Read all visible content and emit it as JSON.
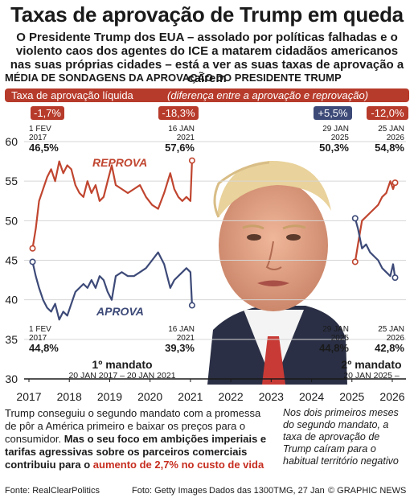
{
  "header": {
    "title": "Taxas de aprovação de Trump em queda",
    "subtitle": "O Presidente Trump dos EUA – assolado por políticas falhadas e o violento caos dos agentes do ICE a matarem cidadãos americanos nas suas próprias cidades – está a ver as suas taxas de aprovação a caírem",
    "section": "MÉDIA DE SONDAGENS DA APROVAÇÃO DO PRESIDENTE TRUMP",
    "net_label_bold": "Taxa de aprovação líquida",
    "net_label_italic": "(diferença entre a aprovação e reprovação)"
  },
  "net_badges": [
    {
      "value": "-1,7%",
      "color": "#b73b2b"
    },
    {
      "value": "-18,3%",
      "color": "#b73b2b"
    },
    {
      "value": "+5,5%",
      "color": "#3d4a78"
    },
    {
      "value": "-12,0%",
      "color": "#b73b2b"
    }
  ],
  "chart_data": {
    "type": "line",
    "x_labels": [
      "2017",
      "2018",
      "2019",
      "2020",
      "2021",
      "2022",
      "2023",
      "2024",
      "2025",
      "2026"
    ],
    "ylim": [
      30,
      60
    ],
    "y_ticks": [
      "60",
      "55",
      "50",
      "45",
      "40",
      "35",
      "30"
    ],
    "series": [
      {
        "name": "REPROVA",
        "color": "#c0452f",
        "term1": {
          "x": [
            2017.09,
            2017.17,
            2017.25,
            2017.35,
            2017.45,
            2017.55,
            2017.65,
            2017.75,
            2017.85,
            2017.95,
            2018.05,
            2018.15,
            2018.25,
            2018.35,
            2018.45,
            2018.55,
            2018.65,
            2018.75,
            2018.85,
            2018.95,
            2019.05,
            2019.15,
            2019.3,
            2019.45,
            2019.6,
            2019.75,
            2019.9,
            2020.05,
            2020.2,
            2020.35,
            2020.5,
            2020.6,
            2020.7,
            2020.8,
            2020.9,
            2021.0,
            2021.04
          ],
          "y": [
            46.5,
            49,
            52.5,
            54,
            55.5,
            56.5,
            55,
            57.5,
            56,
            57,
            56.5,
            54.5,
            53.5,
            53,
            55,
            53.5,
            54.5,
            52.5,
            53,
            55,
            57,
            54.5,
            54,
            53.5,
            54,
            54.5,
            53,
            52,
            51.5,
            53.5,
            56,
            54,
            53,
            52.5,
            53,
            52.5,
            57.6
          ]
        },
        "term2": {
          "x": [
            2025.08,
            2025.15,
            2025.25,
            2025.35,
            2025.45,
            2025.55,
            2025.65,
            2025.75,
            2025.85,
            2025.95,
            2026.02,
            2026.07
          ],
          "y": [
            44.8,
            47,
            50,
            50.5,
            51,
            51.5,
            52,
            53,
            53.5,
            55,
            54,
            54.8
          ]
        }
      },
      {
        "name": "APROVA",
        "color": "#3d4a78",
        "term1": {
          "x": [
            2017.09,
            2017.17,
            2017.25,
            2017.35,
            2017.45,
            2017.55,
            2017.65,
            2017.75,
            2017.85,
            2017.95,
            2018.05,
            2018.15,
            2018.25,
            2018.35,
            2018.45,
            2018.55,
            2018.65,
            2018.75,
            2018.85,
            2018.95,
            2019.05,
            2019.15,
            2019.3,
            2019.45,
            2019.6,
            2019.75,
            2019.9,
            2020.05,
            2020.2,
            2020.35,
            2020.5,
            2020.6,
            2020.7,
            2020.8,
            2020.9,
            2021.0,
            2021.04
          ],
          "y": [
            44.8,
            43,
            41.5,
            40,
            39,
            38.5,
            39.5,
            37.5,
            38.5,
            38,
            39.5,
            41,
            41.5,
            42,
            41.5,
            42.5,
            41.5,
            43,
            42.5,
            41,
            40,
            43,
            43.5,
            43,
            43,
            43.5,
            44,
            45,
            46,
            44.5,
            41.5,
            42.5,
            43,
            43.5,
            44,
            43.5,
            39.3
          ]
        },
        "term2": {
          "x": [
            2025.08,
            2025.15,
            2025.25,
            2025.35,
            2025.45,
            2025.55,
            2025.65,
            2025.75,
            2025.85,
            2025.95,
            2026.02,
            2026.07
          ],
          "y": [
            50.3,
            49,
            46.5,
            47,
            46,
            45.5,
            45,
            44,
            43.5,
            43,
            44.5,
            42.8
          ]
        }
      }
    ],
    "annotations": [
      {
        "date": "1 FEV\n2017",
        "value": "46,5%"
      },
      {
        "date": "16 JAN\n2021",
        "value": "57,6%"
      },
      {
        "date": "29 JAN\n2025",
        "value": "50,3%"
      },
      {
        "date": "25 JAN\n2026",
        "value": "54,8%"
      },
      {
        "date": "1 FEV\n2017",
        "value": "44,8%"
      },
      {
        "date": "16 JAN\n2021",
        "value": "39,3%"
      },
      {
        "date": "29 JAN\n2025",
        "value": "44,8%"
      },
      {
        "date": "25 JAN\n2026",
        "value": "42,8%"
      }
    ],
    "mandates": [
      {
        "label": "1º mandato",
        "range": "20 JAN 2017 – 20 JAN 2021"
      },
      {
        "label": "2º mandato",
        "range": "20 JAN 2025 –"
      }
    ]
  },
  "footer": {
    "left_plain": "Trump conseguiu o segundo mandato com a promessa de pôr a América primeiro e baixar os preços para o consumidor.",
    "left_bold": "Mas o seu foco em ambições imperiais e tarifas agressivas sobre os parceiros comerciais contribuiu para o",
    "left_red": "aumento de 2,7% no custo de vida",
    "right": "Nos dois primeiros meses do segundo mandato, a taxa de aprovação de Trump caíram para o habitual território negativo",
    "source": "Fonte: RealClearPolitics",
    "photo": "Foto: Getty Images",
    "date": "Dados das 1300TMG, 27 Jan",
    "copyright": "© GRAPHIC NEWS"
  }
}
